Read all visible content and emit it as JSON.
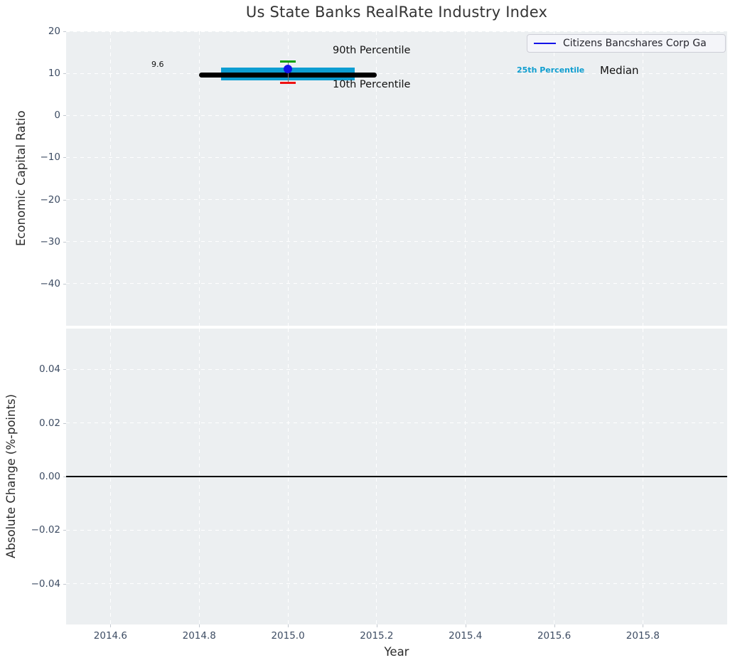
{
  "title": "Us State Banks RealRate Industry Index",
  "legend": {
    "label": "Citizens Bancshares Corp Ga",
    "line_color": "#1313e8"
  },
  "annotations": {
    "p90": "90th Percentile",
    "p10": "10th Percentile",
    "p25": "25th Percentile",
    "median": "Median",
    "median_value": "9.6"
  },
  "colors": {
    "axes_background": "#eceff1",
    "grid": "#ffffff",
    "tick_label": "#3d4c63",
    "iqr_band": "#0d9dd2",
    "p90_cap": "#00a000",
    "p10_cap": "#ee1111",
    "company_dot": "#1313e8",
    "median_line": "#000000"
  },
  "chart_data": [
    {
      "type": "scatter",
      "title": "Us State Banks RealRate Industry Index",
      "ylabel": "Economic Capital Ratio",
      "xlim": [
        2014.5,
        2015.99
      ],
      "ylim": [
        -50,
        20
      ],
      "x_ticks": [
        2014.6,
        2014.8,
        2015.0,
        2015.2,
        2015.4,
        2015.6,
        2015.8
      ],
      "x_tick_labels": [
        "2014.6",
        "2014.8",
        "2015.0",
        "2015.2",
        "2015.4",
        "2015.6",
        "2015.8"
      ],
      "y_ticks": [
        20,
        10,
        0,
        -10,
        -20,
        -30,
        -40
      ],
      "y_tick_labels": [
        "20",
        "10",
        "0",
        "−10",
        "−20",
        "−30",
        "−40"
      ],
      "grid": "white dashed",
      "legend_position": "upper right",
      "legend_entries": [
        "Citizens Bancshares Corp Ga"
      ],
      "series": [
        {
          "name": "25th-75th percentile band",
          "style": "band",
          "x_extent": [
            2014.85,
            2015.15
          ],
          "value_range": [
            8.3,
            11.4
          ],
          "color": "#0d9dd2"
        },
        {
          "name": "Median",
          "style": "thick-line",
          "x_extent": [
            2014.8,
            2015.2
          ],
          "value": 9.6,
          "color": "#000000"
        },
        {
          "name": "10th-90th percentile whisker",
          "style": "vline",
          "x": 2015.0,
          "value_range": [
            7.7,
            12.8
          ],
          "color": "#777777"
        },
        {
          "name": "90th Percentile",
          "style": "cap",
          "x": 2015.0,
          "value": 12.8,
          "color": "#00a000"
        },
        {
          "name": "10th Percentile",
          "style": "cap",
          "x": 2015.0,
          "value": 7.7,
          "color": "#ee1111"
        },
        {
          "name": "Citizens Bancshares Corp Ga",
          "style": "dot",
          "x": 2015.0,
          "value": 11.0,
          "color": "#1313e8"
        }
      ]
    },
    {
      "type": "line",
      "ylabel": "Absolute Change (%-points)",
      "xlabel": "Year",
      "xlim": [
        2014.5,
        2015.99
      ],
      "ylim": [
        -0.0551,
        0.0551
      ],
      "x_ticks": [
        2014.6,
        2014.8,
        2015.0,
        2015.2,
        2015.4,
        2015.6,
        2015.8
      ],
      "x_tick_labels": [
        "2014.6",
        "2014.8",
        "2015.0",
        "2015.2",
        "2015.4",
        "2015.6",
        "2015.8"
      ],
      "y_ticks": [
        0.04,
        0.02,
        0.0,
        -0.02,
        -0.04
      ],
      "y_tick_labels": [
        "0.04",
        "0.02",
        "0.00",
        "−0.02",
        "−0.04"
      ],
      "grid": "white dashed",
      "series": [
        {
          "name": "zero line",
          "style": "hline",
          "value": 0.0,
          "x_extent": [
            2014.5,
            2015.99
          ],
          "color": "#000000"
        }
      ]
    }
  ]
}
